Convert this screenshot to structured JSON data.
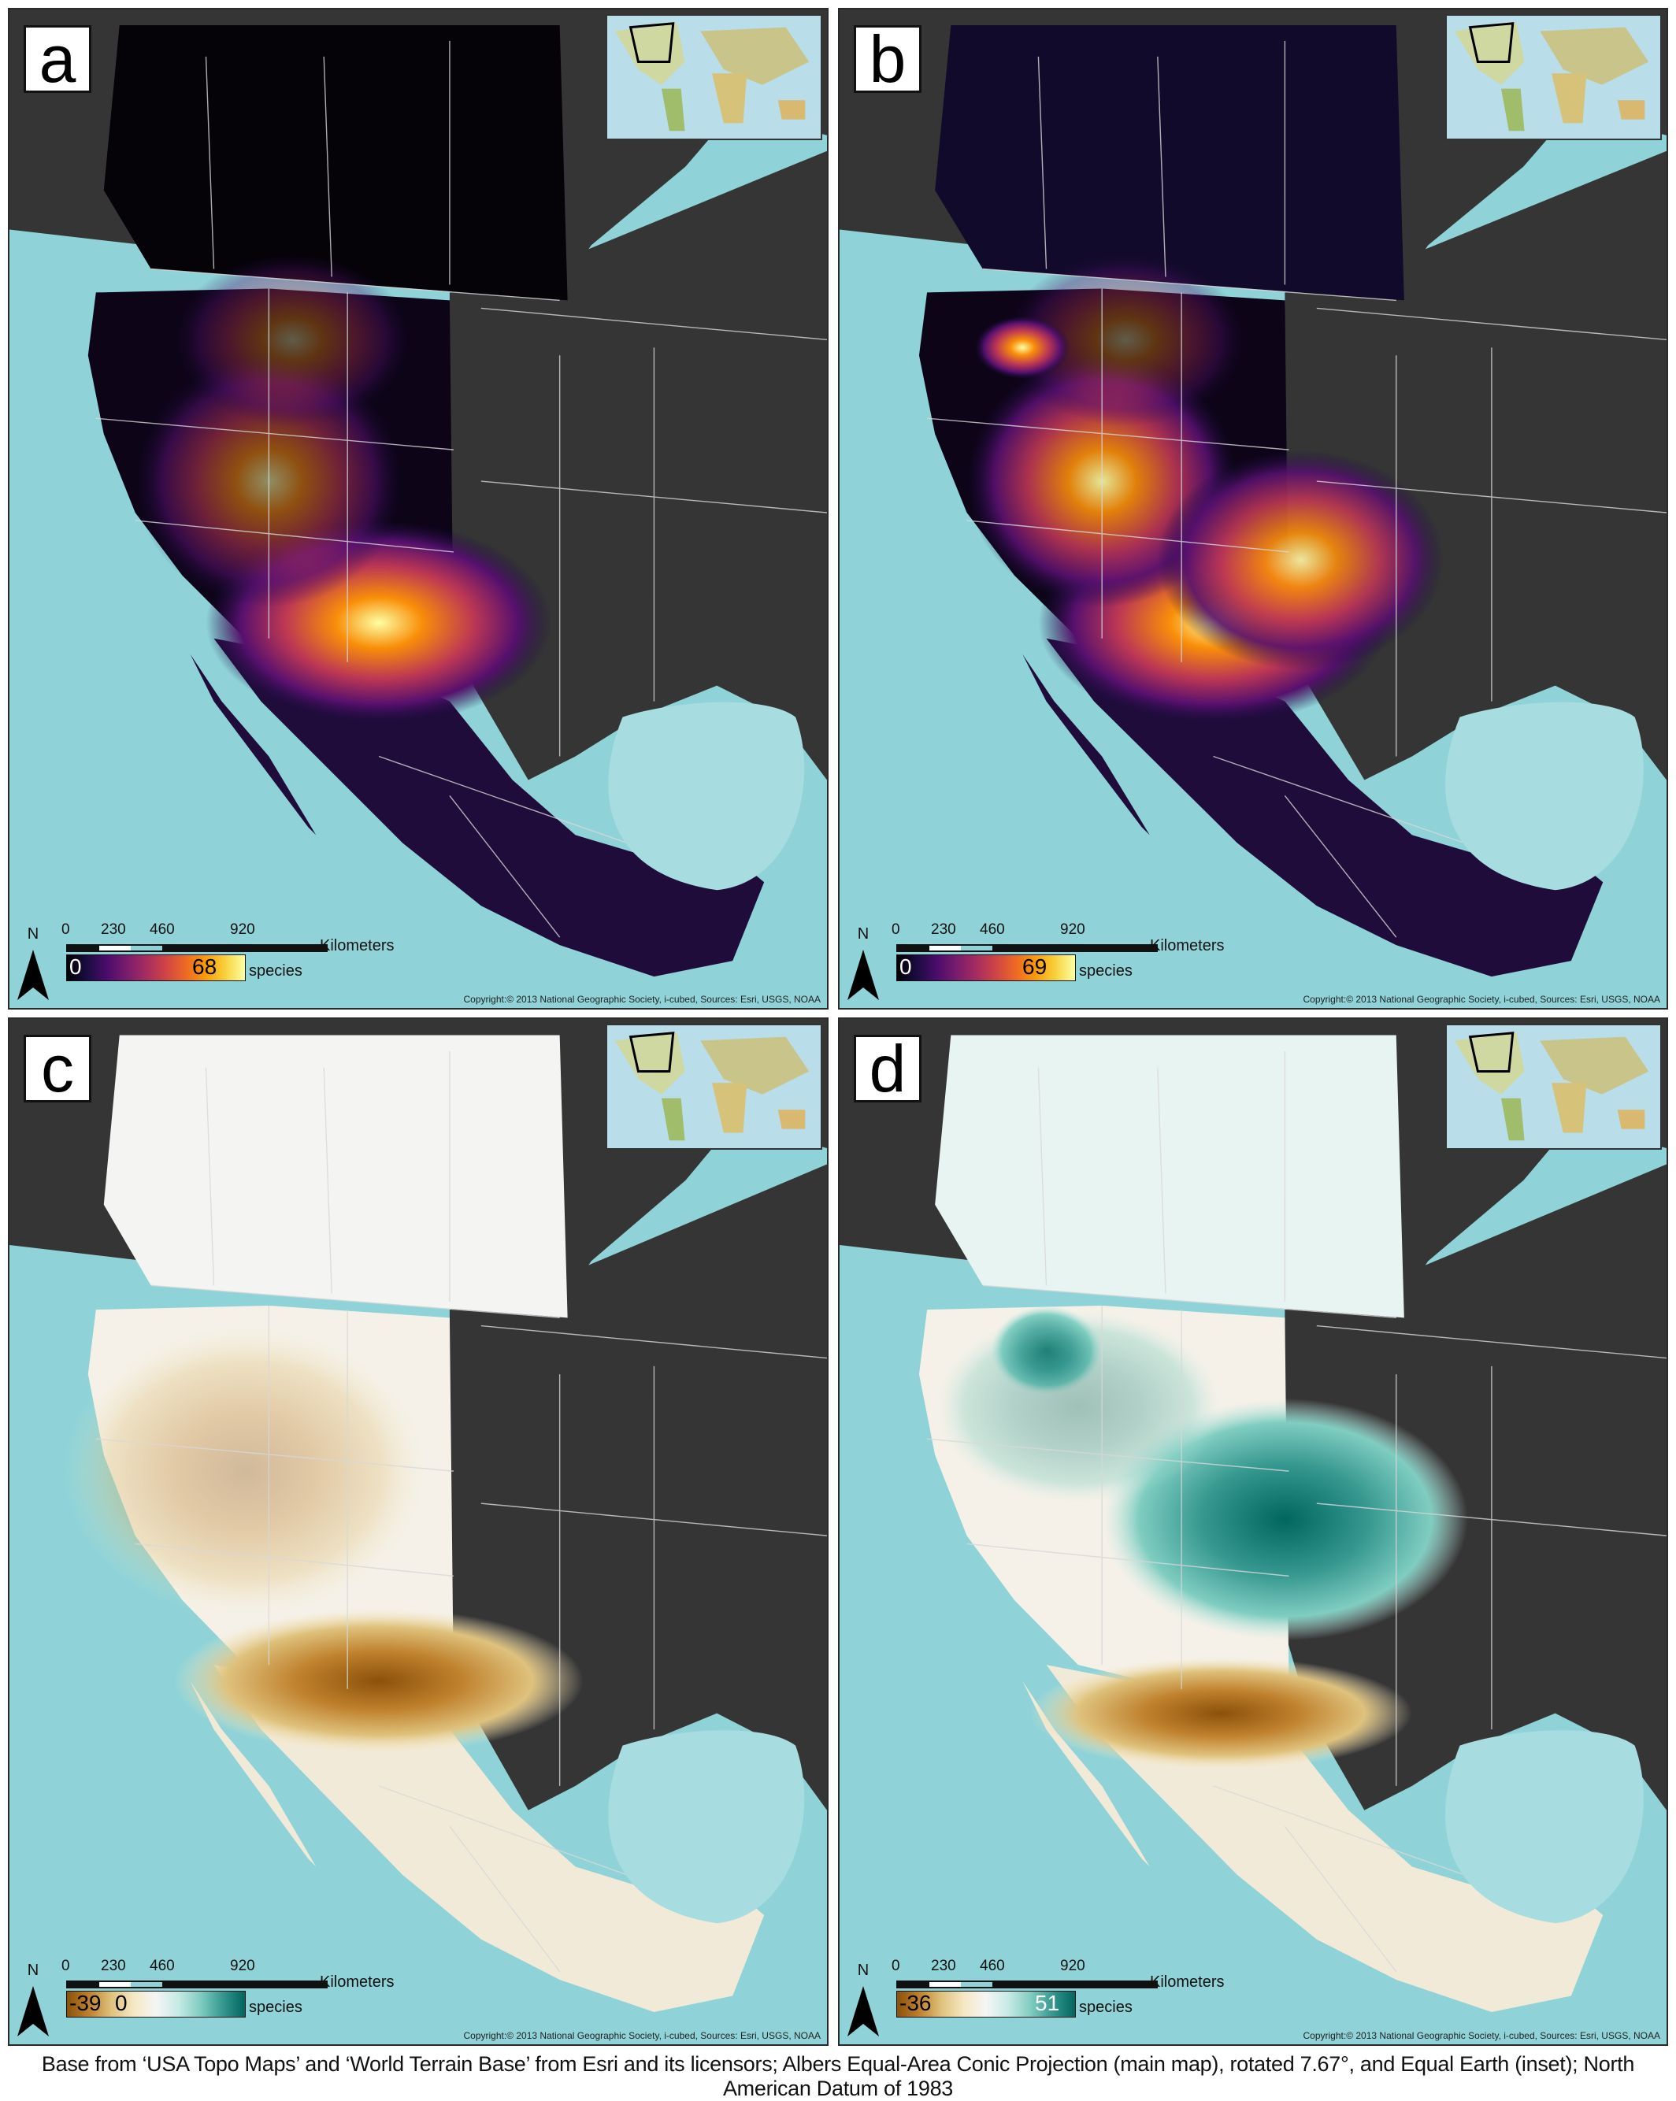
{
  "panels": [
    {
      "id": "a",
      "label": "a",
      "legend_min": "0",
      "legend_max": "68",
      "legend_zero": "",
      "scheme": "inferno"
    },
    {
      "id": "b",
      "label": "b",
      "legend_min": "0",
      "legend_max": "69",
      "legend_zero": "",
      "scheme": "inferno"
    },
    {
      "id": "c",
      "label": "c",
      "legend_min": "-39",
      "legend_max": "",
      "legend_zero": "0",
      "scheme": "brbg"
    },
    {
      "id": "d",
      "label": "d",
      "legend_min": "-36",
      "legend_max": "51",
      "legend_zero": "",
      "scheme": "brbg"
    }
  ],
  "north_label": "N",
  "scale": {
    "ticks": [
      "0",
      "230",
      "460",
      "920"
    ],
    "unit": "Kilometers"
  },
  "legend_unit": "species",
  "copyright": "Copyright:© 2013 National Geographic Society, i-cubed, Sources: Esri, USGS, NOAA",
  "footer": "Base from ‘USA Topo Maps’ and ‘World Terrain Base’ from Esri and its licensors; Albers Equal-Area Conic Projection (main map), rotated 7.67°, and Equal Earth (inset); North American Datum of 1983",
  "colors": {
    "ocean": "#8fd3d8",
    "land_outside": "#353535",
    "inferno_low": "#000004",
    "inferno_high": "#fcffa4",
    "brbg_low": "#8c510a",
    "brbg_mid": "#f5f5f5",
    "brbg_high": "#01665e"
  }
}
